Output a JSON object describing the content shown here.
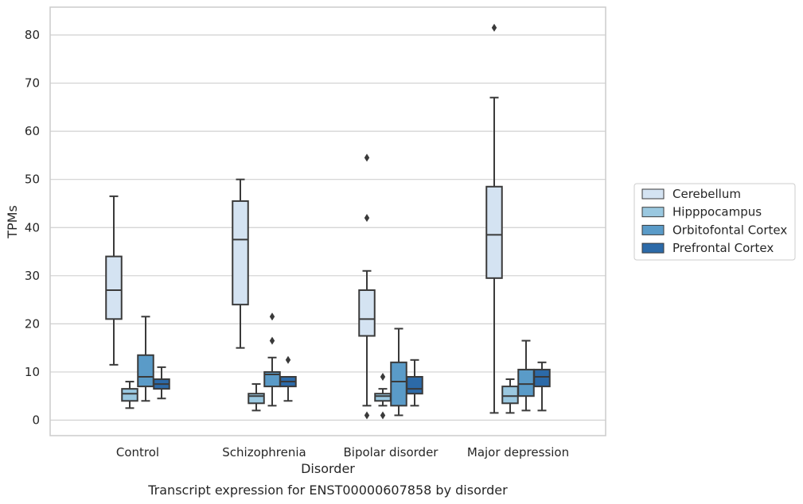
{
  "caption": "Transcript expression for ENST00000607858 by disorder",
  "chart_data": {
    "type": "box",
    "xlabel": "Disorder",
    "ylabel": "TPMs",
    "ylim": [
      -3,
      86
    ],
    "yticks": [
      0,
      10,
      20,
      30,
      40,
      50,
      60,
      70,
      80
    ],
    "categories": [
      "Control",
      "Schizophrenia",
      "Bipolar disorder",
      "Major depression"
    ],
    "grid": true,
    "legend_position": "right",
    "series": [
      {
        "name": "Cerebellum",
        "color": "#d4e3f2",
        "boxes": [
          {
            "whislo": 11.5,
            "q1": 21.0,
            "med": 27.0,
            "q3": 34.0,
            "whishi": 46.5,
            "fliers": []
          },
          {
            "whislo": 15.0,
            "q1": 24.0,
            "med": 37.5,
            "q3": 45.5,
            "whishi": 50.0,
            "fliers": []
          },
          {
            "whislo": 3.0,
            "q1": 17.5,
            "med": 21.0,
            "q3": 27.0,
            "whishi": 31.0,
            "fliers": [
              54.5,
              42.0,
              1.0
            ]
          },
          {
            "whislo": 1.5,
            "q1": 29.5,
            "med": 38.5,
            "q3": 48.5,
            "whishi": 67.0,
            "fliers": [
              81.5
            ]
          }
        ]
      },
      {
        "name": "Hipppocampus",
        "color": "#9ac8e0",
        "boxes": [
          {
            "whislo": 2.5,
            "q1": 4.0,
            "med": 5.5,
            "q3": 6.5,
            "whishi": 8.0,
            "fliers": []
          },
          {
            "whislo": 2.0,
            "q1": 3.5,
            "med": 5.0,
            "q3": 5.5,
            "whishi": 7.5,
            "fliers": []
          },
          {
            "whislo": 3.0,
            "q1": 4.0,
            "med": 5.0,
            "q3": 5.5,
            "whishi": 6.5,
            "fliers": [
              9.0,
              1.0
            ]
          },
          {
            "whislo": 1.5,
            "q1": 3.5,
            "med": 5.0,
            "q3": 7.0,
            "whishi": 8.5,
            "fliers": []
          }
        ]
      },
      {
        "name": "Orbitofontal Cortex",
        "color": "#5a9bc8",
        "boxes": [
          {
            "whislo": 4.0,
            "q1": 7.0,
            "med": 9.0,
            "q3": 13.5,
            "whishi": 21.5,
            "fliers": []
          },
          {
            "whislo": 3.0,
            "q1": 7.0,
            "med": 9.5,
            "q3": 10.0,
            "whishi": 13.0,
            "fliers": [
              21.5,
              16.5
            ]
          },
          {
            "whislo": 1.0,
            "q1": 3.0,
            "med": 8.0,
            "q3": 12.0,
            "whishi": 19.0,
            "fliers": []
          },
          {
            "whislo": 2.0,
            "q1": 5.0,
            "med": 7.5,
            "q3": 10.5,
            "whishi": 16.5,
            "fliers": []
          }
        ]
      },
      {
        "name": "Prefrontal Cortex",
        "color": "#2c6aa8",
        "boxes": [
          {
            "whislo": 4.5,
            "q1": 6.5,
            "med": 7.5,
            "q3": 8.5,
            "whishi": 11.0,
            "fliers": []
          },
          {
            "whislo": 4.0,
            "q1": 7.0,
            "med": 8.0,
            "q3": 9.0,
            "whishi": 9.0,
            "fliers": [
              12.5
            ]
          },
          {
            "whislo": 3.0,
            "q1": 5.5,
            "med": 6.5,
            "q3": 9.0,
            "whishi": 12.5,
            "fliers": []
          },
          {
            "whislo": 2.0,
            "q1": 7.0,
            "med": 9.0,
            "q3": 10.5,
            "whishi": 12.0,
            "fliers": []
          }
        ]
      }
    ]
  }
}
